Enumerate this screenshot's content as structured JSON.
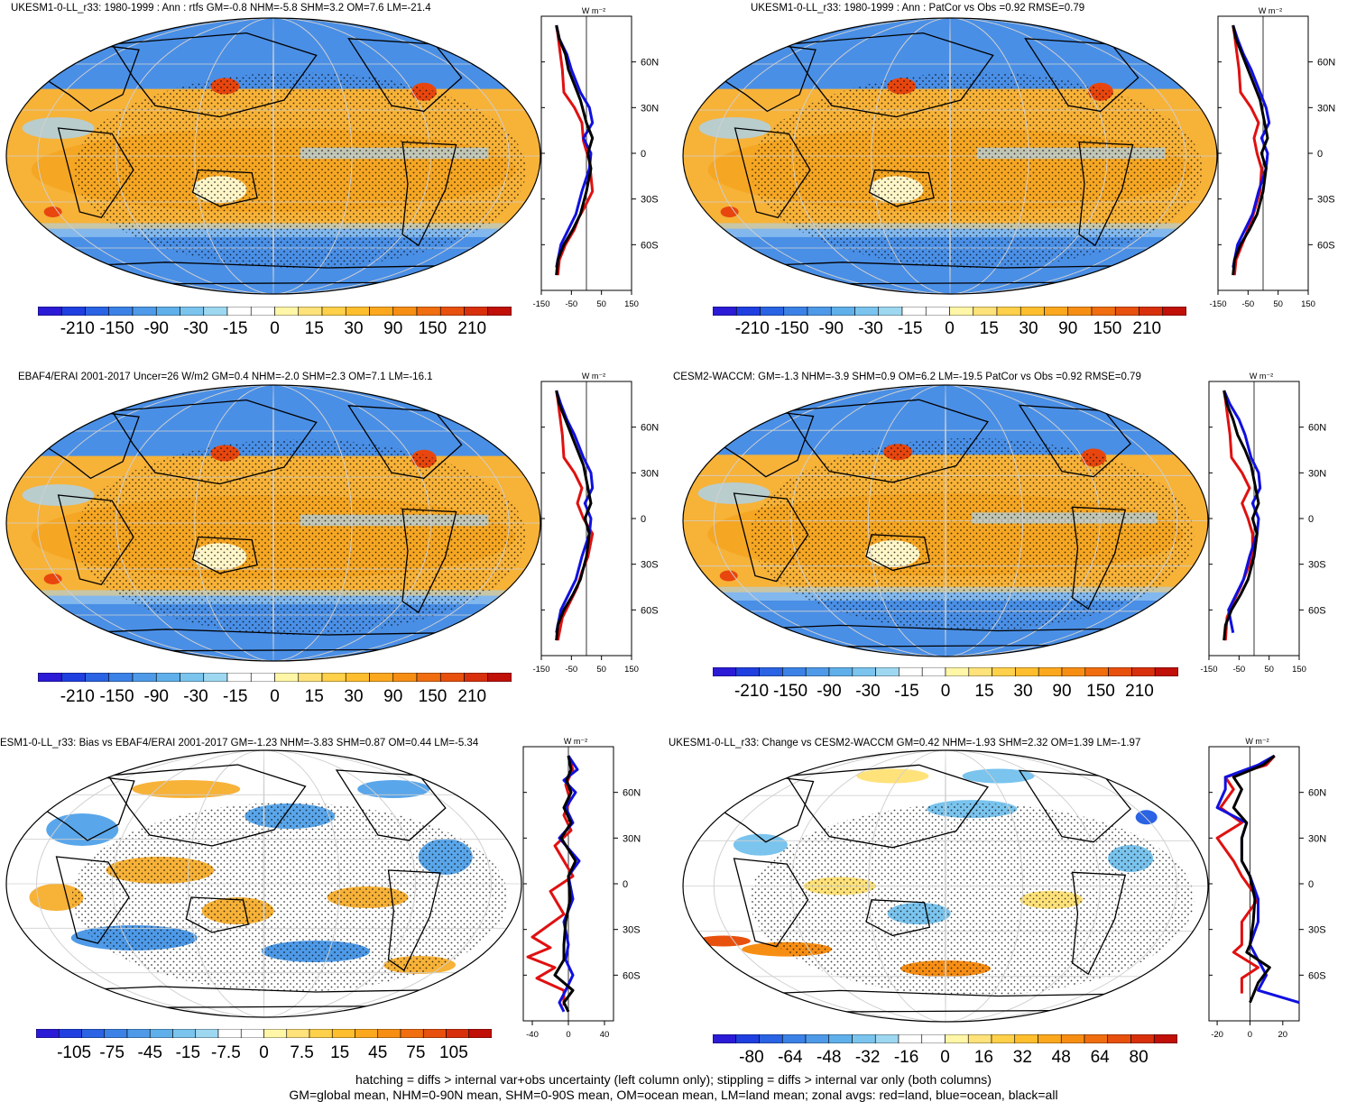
{
  "panels": [
    {
      "title": "UKESM1-0-LL_r33: 1980-1999 : Ann : rtfs GM=-0.8 NHM=-5.8 SHM=3.2 OM=7.6 LM=-21.4",
      "cbar_labels": [
        "-210",
        "-150",
        "-90",
        "-30",
        "-15",
        "0",
        "15",
        "30",
        "90",
        "150",
        "210"
      ],
      "zonal_xticks": [
        "-150",
        "-50",
        "50",
        "150"
      ],
      "zonal_units": "W m⁻²",
      "zonal_yticks": [
        "60N",
        "30N",
        "0",
        "30S",
        "60S"
      ]
    },
    {
      "title": "UKESM1-0-LL_r33: 1980-1999 : Ann : PatCor vs Obs =0.92 RMSE=0.79",
      "cbar_labels": [
        "-210",
        "-150",
        "-90",
        "-30",
        "-15",
        "0",
        "15",
        "30",
        "90",
        "150",
        "210"
      ],
      "zonal_xticks": [
        "-150",
        "-50",
        "50",
        "150"
      ],
      "zonal_units": "W m⁻²",
      "zonal_yticks": [
        "60N",
        "30N",
        "0",
        "30S",
        "60S"
      ]
    },
    {
      "title": "EBAF4/ERAI 2001-2017 Uncer=26 W/m2 GM=0.4 NHM=-2.0 SHM=2.3 OM=7.1 LM=-16.1",
      "cbar_labels": [
        "-210",
        "-150",
        "-90",
        "-30",
        "-15",
        "0",
        "15",
        "30",
        "90",
        "150",
        "210"
      ],
      "zonal_xticks": [
        "-150",
        "-50",
        "50",
        "150"
      ],
      "zonal_units": "W m⁻²",
      "zonal_yticks": [
        "60N",
        "30N",
        "0",
        "30S",
        "60S"
      ]
    },
    {
      "title": "CESM2-WACCM: GM=-1.3 NHM=-3.9 SHM=0.9 OM=6.2 LM=-19.5 PatCor vs Obs =0.92 RMSE=0.79",
      "cbar_labels": [
        "-210",
        "-150",
        "-90",
        "-30",
        "-15",
        "0",
        "15",
        "30",
        "90",
        "150",
        "210"
      ],
      "zonal_xticks": [
        "-150",
        "-50",
        "50",
        "150"
      ],
      "zonal_units": "W m⁻²",
      "zonal_yticks": [
        "60N",
        "30N",
        "0",
        "30S",
        "60S"
      ]
    },
    {
      "title": "ESM1-0-LL_r33: Bias vs EBAF4/ERAI 2001-2017 GM=-1.23 NHM=-3.83 SHM=0.87 OM=0.44 LM=-5.34",
      "cbar_labels": [
        "-105",
        "-75",
        "-45",
        "-15",
        "-7.5",
        "0",
        "7.5",
        "15",
        "45",
        "75",
        "105"
      ],
      "zonal_xticks": [
        "-40",
        "0",
        "40"
      ],
      "zonal_units": "W m⁻²",
      "zonal_yticks": [
        "60N",
        "30N",
        "0",
        "30S",
        "60S"
      ]
    },
    {
      "title": "UKESM1-0-LL_r33: Change vs CESM2-WACCM GM=0.42 NHM=-1.93 SHM=2.32 OM=1.39 LM=-1.97",
      "cbar_labels": [
        "-80",
        "-64",
        "-48",
        "-32",
        "-16",
        "0",
        "16",
        "32",
        "48",
        "64",
        "80"
      ],
      "zonal_xticks": [
        "-20",
        "0",
        "20"
      ],
      "zonal_units": "W m⁻²",
      "zonal_yticks": [
        "60N",
        "30N",
        "0",
        "30S",
        "60S"
      ]
    }
  ],
  "footer": {
    "line1": "hatching = diffs > internal var+obs uncertainty (left column only); stippling = diffs > internal var only (both columns)",
    "line2": "GM=global mean, NHM=0-90N mean, SHM=0-90S mean, OM=ocean mean, LM=land mean; zonal avgs: red=land, blue=ocean, black=all"
  },
  "colors": {
    "colorbar": [
      "#2b1bd6",
      "#1f3fe0",
      "#2a63e3",
      "#3c82e6",
      "#4e9ae8",
      "#5fb0ea",
      "#7ac4ee",
      "#9ed7f0",
      "#ffffff",
      "#ffffff",
      "#fff6a8",
      "#ffe27a",
      "#ffd04a",
      "#ffbe2e",
      "#fca81e",
      "#f78e14",
      "#f06e10",
      "#e8500e",
      "#d8300c",
      "#c01008"
    ],
    "land_line": "#e01010",
    "ocean_line": "#1010e0",
    "all_line": "#000000",
    "map_cool": "#4a8fe6",
    "map_warm": "#f7b238",
    "map_light_cool": "#a9d3f2",
    "map_hot": "#e8460e"
  },
  "chart_data": [
    {
      "type": "line",
      "title": "UKESM1-0-LL_r33: 1980-1999 : Ann : rtfs GM=-0.8 NHM=-5.8 SHM=3.2 OM=7.6 LM=-21.4",
      "xlim": [
        -150,
        150
      ],
      "ylim": [
        -90,
        90
      ],
      "series": [
        {
          "name": "land",
          "x": [
            -100,
            -95,
            -90,
            -80,
            -75,
            -40,
            -15,
            -10,
            10,
            15,
            20,
            -5,
            -25,
            -40,
            -70,
            -90,
            -95
          ],
          "y": [
            84,
            78,
            70,
            55,
            40,
            30,
            20,
            8,
            -5,
            -15,
            -25,
            -35,
            -42,
            -50,
            -60,
            -70,
            -80
          ]
        },
        {
          "name": "ocean",
          "x": [
            -100,
            -90,
            -65,
            -50,
            -20,
            10,
            20,
            -10,
            15,
            10,
            -15,
            -35,
            -60,
            -85,
            -100
          ],
          "y": [
            84,
            75,
            65,
            55,
            40,
            30,
            20,
            10,
            0,
            -10,
            -25,
            -40,
            -50,
            -60,
            -75
          ]
        },
        {
          "name": "all",
          "x": [
            -100,
            -90,
            -70,
            -60,
            -40,
            -20,
            0,
            20,
            5,
            15,
            0,
            -20,
            -45,
            -75,
            -95,
            -100
          ],
          "y": [
            84,
            75,
            65,
            55,
            45,
            35,
            20,
            10,
            0,
            -10,
            -25,
            -40,
            -50,
            -60,
            -70,
            -80
          ]
        }
      ]
    },
    {
      "type": "line",
      "title": "UKESM1-0-LL_r33: 1980-1999 : Ann : PatCor vs Obs =0.92 RMSE=0.79",
      "xlim": [
        -150,
        150
      ],
      "ylim": [
        -90,
        90
      ],
      "series": [
        {
          "name": "land",
          "x": [
            -100,
            -95,
            -90,
            -80,
            -75,
            -40,
            -15,
            -30,
            -20,
            -5,
            -10,
            -25,
            -40,
            -70,
            -90,
            -95
          ],
          "y": [
            84,
            78,
            70,
            55,
            40,
            30,
            20,
            10,
            0,
            -10,
            -25,
            -35,
            -45,
            -60,
            -70,
            -80
          ]
        },
        {
          "name": "ocean",
          "x": [
            -100,
            -85,
            -65,
            -40,
            -10,
            10,
            20,
            -5,
            15,
            10,
            -15,
            -35,
            -60,
            -85,
            -100
          ],
          "y": [
            84,
            75,
            65,
            55,
            40,
            30,
            20,
            10,
            0,
            -10,
            -25,
            -40,
            -50,
            -60,
            -75
          ]
        },
        {
          "name": "all",
          "x": [
            -100,
            -90,
            -70,
            -50,
            -30,
            -10,
            5,
            15,
            -5,
            10,
            0,
            -20,
            -45,
            -75,
            -95,
            -100
          ],
          "y": [
            84,
            75,
            65,
            55,
            45,
            35,
            20,
            10,
            0,
            -10,
            -25,
            -40,
            -50,
            -60,
            -70,
            -80
          ]
        }
      ]
    },
    {
      "type": "line",
      "title": "EBAF4/ERAI 2001-2017 Uncer=26 W/m2 GM=0.4 NHM=-2.0 SHM=2.3 OM=7.1 LM=-16.1",
      "xlim": [
        -150,
        150
      ],
      "ylim": [
        -90,
        90
      ],
      "series": [
        {
          "name": "land",
          "x": [
            -100,
            -95,
            -90,
            -80,
            -75,
            -40,
            -15,
            -30,
            -10,
            20,
            5,
            -15,
            -30,
            -55,
            -80,
            -95
          ],
          "y": [
            84,
            78,
            70,
            55,
            40,
            30,
            20,
            10,
            0,
            -10,
            -25,
            -35,
            -45,
            -55,
            -65,
            -80
          ]
        },
        {
          "name": "ocean",
          "x": [
            -100,
            -85,
            -65,
            -40,
            -10,
            15,
            20,
            -5,
            15,
            10,
            -15,
            -35,
            -60,
            -85,
            -100
          ],
          "y": [
            84,
            75,
            65,
            55,
            40,
            30,
            20,
            10,
            0,
            -10,
            -25,
            -40,
            -50,
            -60,
            -75
          ]
        },
        {
          "name": "all",
          "x": [
            -100,
            -90,
            -70,
            -50,
            -30,
            -10,
            5,
            15,
            -5,
            10,
            0,
            -20,
            -45,
            -75,
            -95,
            -100
          ],
          "y": [
            84,
            75,
            65,
            55,
            45,
            35,
            20,
            10,
            0,
            -10,
            -25,
            -40,
            -50,
            -60,
            -70,
            -80
          ]
        }
      ]
    },
    {
      "type": "line",
      "title": "CESM2-WACCM: GM=-1.3 NHM=-3.9 SHM=0.9 OM=6.2 LM=-19.5 PatCor vs Obs =0.92 RMSE=0.79",
      "xlim": [
        -150,
        150
      ],
      "ylim": [
        -90,
        90
      ],
      "series": [
        {
          "name": "land",
          "x": [
            -100,
            -95,
            -90,
            -80,
            -75,
            -40,
            -15,
            -40,
            -20,
            -5,
            -5,
            -25,
            -45,
            -70,
            -90,
            -95
          ],
          "y": [
            84,
            78,
            70,
            55,
            40,
            30,
            20,
            10,
            0,
            -10,
            -25,
            -35,
            -45,
            -55,
            -65,
            -80
          ]
        },
        {
          "name": "ocean",
          "x": [
            -100,
            -80,
            -50,
            -30,
            -10,
            15,
            20,
            -5,
            15,
            10,
            -15,
            -35,
            -60,
            -85,
            -70
          ],
          "y": [
            84,
            75,
            65,
            55,
            40,
            30,
            20,
            10,
            0,
            -10,
            -25,
            -40,
            -50,
            -60,
            -75
          ]
        },
        {
          "name": "all",
          "x": [
            -100,
            -90,
            -70,
            -55,
            -30,
            -10,
            5,
            15,
            -5,
            10,
            0,
            -20,
            -45,
            -75,
            -95,
            -100
          ],
          "y": [
            84,
            75,
            65,
            55,
            45,
            35,
            20,
            10,
            0,
            -10,
            -25,
            -40,
            -50,
            -60,
            -70,
            -80
          ]
        }
      ]
    },
    {
      "type": "line",
      "title": "ESM1-0-LL_r33: Bias vs EBAF4/ERAI 2001-2017 GM=-1.23 NHM=-3.83 SHM=0.87 OM=0.44 LM=-5.34",
      "xlim": [
        -50,
        50
      ],
      "ylim": [
        -90,
        90
      ],
      "series": [
        {
          "name": "land",
          "x": [
            0,
            5,
            -3,
            2,
            -5,
            3,
            -15,
            -5,
            5,
            -20,
            -5,
            -40,
            -20,
            -45,
            -15,
            -35,
            -5,
            -5
          ],
          "y": [
            84,
            75,
            65,
            55,
            45,
            35,
            25,
            15,
            5,
            -5,
            -20,
            -35,
            -42,
            -48,
            -55,
            -62,
            -70,
            -80
          ]
        },
        {
          "name": "ocean",
          "x": [
            0,
            10,
            -5,
            8,
            -3,
            5,
            -10,
            12,
            0,
            5,
            -5,
            0,
            -3,
            5,
            -3,
            -10,
            -5
          ],
          "y": [
            84,
            75,
            68,
            60,
            50,
            40,
            30,
            15,
            5,
            -10,
            -25,
            -40,
            -50,
            -60,
            -70,
            -78,
            -84
          ]
        },
        {
          "name": "all",
          "x": [
            0,
            3,
            -2,
            3,
            -5,
            3,
            -8,
            8,
            0,
            2,
            -3,
            -5,
            -5,
            -15,
            5,
            -5,
            0
          ],
          "y": [
            84,
            75,
            68,
            60,
            50,
            40,
            30,
            15,
            5,
            -10,
            -25,
            -40,
            -50,
            -60,
            -70,
            -78,
            -84
          ]
        }
      ]
    },
    {
      "type": "line",
      "title": "UKESM1-0-LL_r33: Change vs CESM2-WACCM GM=0.42 NHM=-1.93 SHM=2.32 OM=1.39 LM=-1.97",
      "xlim": [
        -25,
        30
      ],
      "ylim": [
        -90,
        90
      ],
      "series": [
        {
          "name": "land",
          "x": [
            15,
            10,
            -15,
            -10,
            -18,
            -5,
            -20,
            -10,
            -5,
            5,
            -5,
            -5,
            -10,
            5,
            -5,
            -5
          ],
          "y": [
            84,
            78,
            70,
            62,
            50,
            40,
            30,
            15,
            5,
            -10,
            -25,
            -40,
            -45,
            -55,
            -62,
            -72
          ]
        },
        {
          "name": "ocean",
          "x": [
            15,
            5,
            -15,
            -15,
            -20,
            -2,
            -5,
            -5,
            0,
            5,
            5,
            0,
            5,
            10,
            5,
            30
          ],
          "y": [
            84,
            78,
            70,
            62,
            50,
            40,
            30,
            15,
            5,
            -10,
            -25,
            -40,
            -50,
            -60,
            -70,
            -78
          ]
        },
        {
          "name": "all",
          "x": [
            15,
            8,
            -10,
            -5,
            -10,
            -2,
            -5,
            -5,
            0,
            3,
            2,
            0,
            -2,
            12,
            5,
            0
          ],
          "y": [
            84,
            78,
            70,
            62,
            50,
            40,
            30,
            15,
            5,
            -10,
            -25,
            -40,
            -45,
            -55,
            -65,
            -78
          ]
        }
      ]
    }
  ]
}
